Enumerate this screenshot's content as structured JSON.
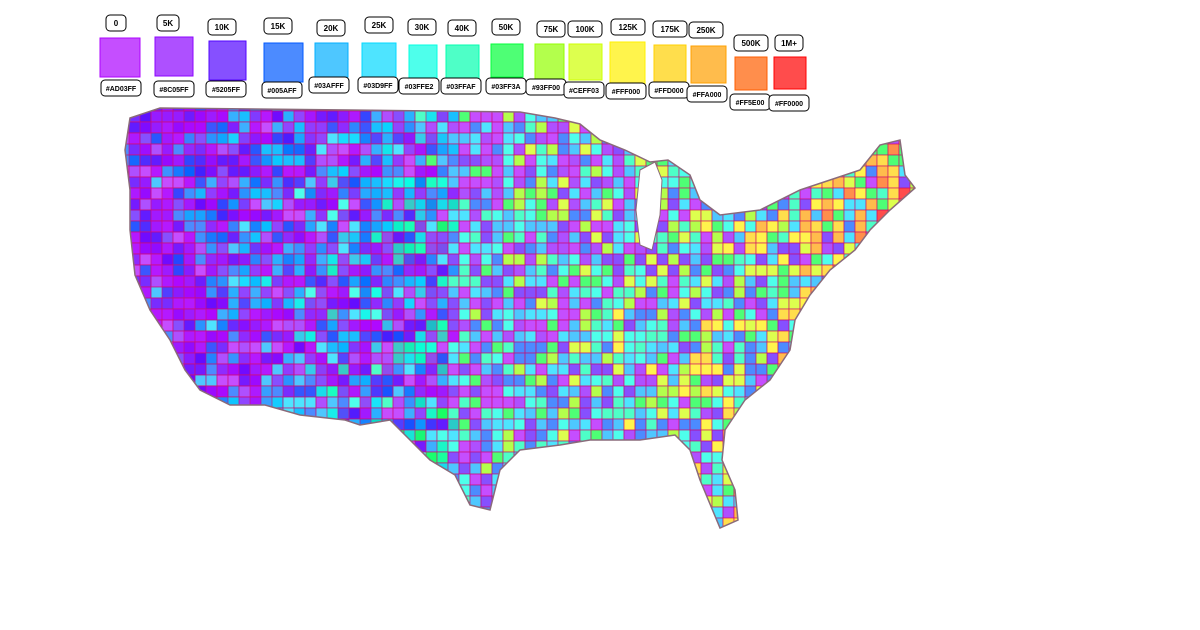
{
  "legend": {
    "items": [
      {
        "label": "0",
        "color": "#AD03FF"
      },
      {
        "label": "5K",
        "color": "#8C05FF"
      },
      {
        "label": "10K",
        "color": "#5205FF"
      },
      {
        "label": "15K",
        "color": "#005AFF"
      },
      {
        "label": "20K",
        "color": "#03AFFF"
      },
      {
        "label": "25K",
        "color": "#03D9FF"
      },
      {
        "label": "30K",
        "color": "#03FFE2"
      },
      {
        "label": "40K",
        "color": "#03FFAF"
      },
      {
        "label": "50K",
        "color": "#03FF3A"
      },
      {
        "label": "75K",
        "color": "#93FF00"
      },
      {
        "label": "100K",
        "color": "#CEFF03"
      },
      {
        "label": "125K",
        "color": "#FFF000"
      },
      {
        "label": "175K",
        "color": "#FFD000"
      },
      {
        "label": "250K",
        "color": "#FFA000"
      },
      {
        "label": "500K",
        "color": "#FF5E00"
      },
      {
        "label": "1M+",
        "color": "#FF0000"
      }
    ]
  }
}
